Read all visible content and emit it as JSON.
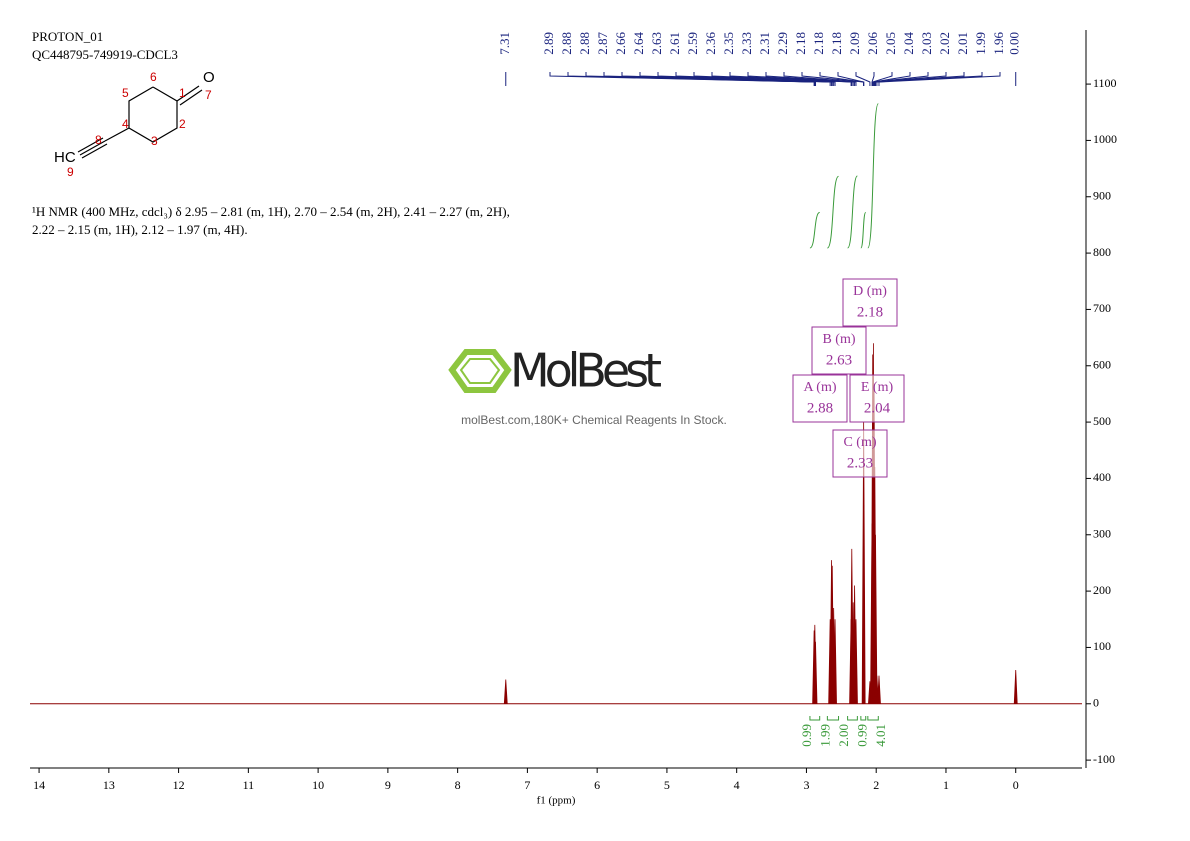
{
  "header": {
    "lines": [
      "PROTON_01",
      "QC448795-749919-CDCL3"
    ]
  },
  "molecule": {
    "atoms": [
      "O",
      "1",
      "2",
      "3",
      "4",
      "5",
      "6",
      "7",
      "8",
      "HC",
      "9"
    ]
  },
  "description": [
    "¹H NMR (400 MHz, cdcl₃) δ 2.95 – 2.81 (m, 1H), 2.70 – 2.54 (m, 2H), 2.41 – 2.27 (m, 2H),",
    "2.22 – 2.15 (m, 1H), 2.12 – 1.97 (m, 4H)."
  ],
  "watermark": {
    "brand": "MolBest",
    "tagline": "molBest.com,180K+ Chemical Reagents In Stock."
  },
  "chart_data": {
    "type": "spectrum",
    "x_label": "f1 (ppm)",
    "color": "#8b0000",
    "xlim": [
      14.13,
      -0.95
    ],
    "xticks": [
      14,
      13,
      12,
      11,
      10,
      9,
      8,
      7,
      6,
      5,
      4,
      3,
      2,
      1,
      0
    ],
    "ylim": [
      -114,
      1196
    ],
    "yticks": [
      -100,
      0,
      100,
      200,
      300,
      400,
      500,
      600,
      700,
      800,
      900,
      1000,
      1100
    ],
    "x": [
      7.31,
      2.89,
      2.88,
      2.87,
      2.66,
      2.64,
      2.63,
      2.61,
      2.59,
      2.36,
      2.35,
      2.33,
      2.31,
      2.29,
      2.18,
      2.09,
      2.06,
      2.05,
      2.04,
      2.03,
      2.02,
      2.01,
      1.99,
      1.96,
      0
    ],
    "values": [
      43,
      130,
      140,
      110,
      150,
      255,
      245,
      170,
      150,
      150,
      275,
      180,
      210,
      150,
      500,
      40,
      320,
      620,
      640,
      560,
      420,
      300,
      50,
      50,
      60
    ],
    "peak_labels": {
      "color": "#1a237e",
      "values": [
        7.31,
        2.89,
        2.88,
        2.88,
        2.87,
        2.66,
        2.64,
        2.63,
        2.61,
        2.59,
        2.36,
        2.35,
        2.33,
        2.31,
        2.29,
        2.18,
        2.18,
        2.18,
        2.09,
        2.06,
        2.05,
        2.04,
        2.03,
        2.02,
        2.01,
        1.99,
        1.96,
        0
      ],
      "value_labels": [
        "7.31",
        "2.89",
        "2.88",
        "2.88",
        "2.87",
        "2.66",
        "2.64",
        "2.63",
        "2.61",
        "2.59",
        "2.36",
        "2.35",
        "2.33",
        "2.31",
        "2.29",
        "2.18",
        "2.18",
        "2.18",
        "2.09",
        "2.06",
        "2.05",
        "2.04",
        "2.03",
        "2.02",
        "2.01",
        "1.99",
        "1.96",
        "0.00"
      ]
    },
    "integrals": {
      "color": "#3a9a3a",
      "ranges": [
        [
          2.95,
          2.81
        ],
        [
          2.7,
          2.54
        ],
        [
          2.41,
          2.27
        ],
        [
          2.22,
          2.15
        ],
        [
          2.12,
          1.97
        ]
      ],
      "values": [
        0.99,
        1.99,
        2,
        0.99,
        4.01
      ],
      "value_labels": [
        "0.99",
        "1.99",
        "2.00",
        "0.99",
        "4.01"
      ]
    },
    "multiplets": {
      "color": "#993399",
      "labels": [
        "A (m)",
        "B (m)",
        "C (m)",
        "D (m)",
        "E (m)"
      ],
      "shifts": [
        2.88,
        2.63,
        2.33,
        2.18,
        2.04
      ]
    }
  }
}
